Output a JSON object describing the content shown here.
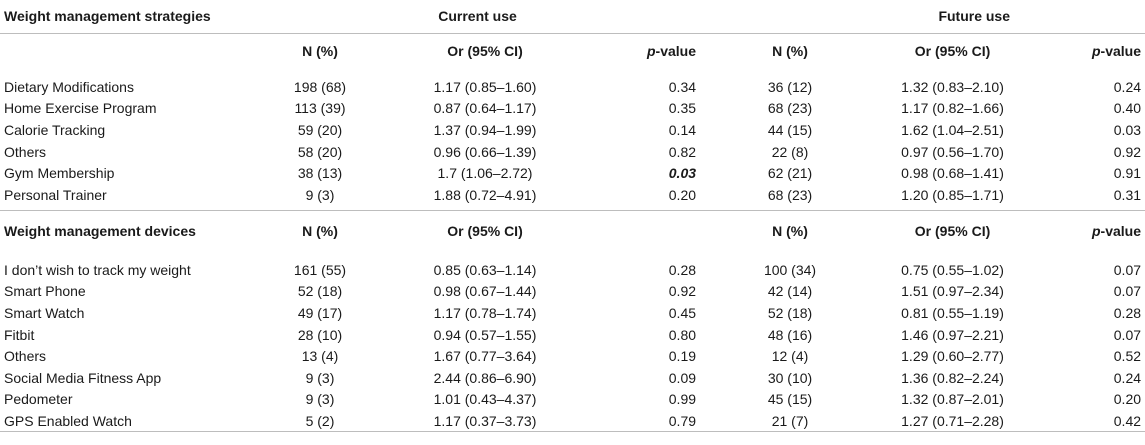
{
  "header": {
    "title": "Weight management strategies",
    "current_use": "Current use",
    "future_use": "Future use"
  },
  "subheader": {
    "n_pct": "N (%)",
    "or_ci": "Or (95% CI)",
    "p_italic": "p",
    "p_suffix": "-value"
  },
  "strategies": [
    {
      "name": "Dietary Modifications",
      "cur_n": "198 (68)",
      "cur_or": "1.17 (0.85–1.60)",
      "cur_p": "0.34",
      "fut_n": "36 (12)",
      "fut_or": "1.32 (0.83–2.10)",
      "fut_p": "0.24"
    },
    {
      "name": "Home Exercise Program",
      "cur_n": "113 (39)",
      "cur_or": "0.87 (0.64–1.17)",
      "cur_p": "0.35",
      "fut_n": "68 (23)",
      "fut_or": "1.17 (0.82–1.66)",
      "fut_p": "0.40"
    },
    {
      "name": "Calorie Tracking",
      "cur_n": "59 (20)",
      "cur_or": "1.37 (0.94–1.99)",
      "cur_p": "0.14",
      "fut_n": "44 (15)",
      "fut_or": "1.62 (1.04–2.51)",
      "fut_p": "0.03"
    },
    {
      "name": "Others",
      "cur_n": "58 (20)",
      "cur_or": "0.96 (0.66–1.39)",
      "cur_p": "0.82",
      "fut_n": "22 (8)",
      "fut_or": "0.97 (0.56–1.70)",
      "fut_p": "0.92"
    },
    {
      "name": "Gym Membership",
      "cur_n": "38 (13)",
      "cur_or": "1.7 (1.06–2.72)",
      "cur_p": "0.03",
      "fut_n": "62 (21)",
      "fut_or": "0.98 (0.68–1.41)",
      "fut_p": "0.91"
    },
    {
      "name": "Personal Trainer",
      "cur_n": "9 (3)",
      "cur_or": "1.88 (0.72–4.91)",
      "cur_p": "0.20",
      "fut_n": "68 (23)",
      "fut_or": "1.20 (0.85–1.71)",
      "fut_p": "0.31"
    }
  ],
  "devices_header": {
    "title": "Weight management devices",
    "n_pct": "N (%)",
    "or_ci": "Or (95% CI)",
    "fut_n_pct": "N (%)",
    "fut_or_ci": "Or (95% CI)",
    "p_italic": "p",
    "p_suffix": "-value"
  },
  "devices": [
    {
      "name": "I don’t wish to track my weight",
      "cur_n": "161 (55)",
      "cur_or": "0.85 (0.63–1.14)",
      "cur_p": "0.28",
      "fut_n": "100 (34)",
      "fut_or": "0.75 (0.55–1.02)",
      "fut_p": "0.07"
    },
    {
      "name": "Smart Phone",
      "cur_n": "52 (18)",
      "cur_or": "0.98 (0.67–1.44)",
      "cur_p": "0.92",
      "fut_n": "42 (14)",
      "fut_or": "1.51 (0.97–2.34)",
      "fut_p": "0.07"
    },
    {
      "name": "Smart Watch",
      "cur_n": "49 (17)",
      "cur_or": "1.17 (0.78–1.74)",
      "cur_p": "0.45",
      "fut_n": "52 (18)",
      "fut_or": "0.81 (0.55–1.19)",
      "fut_p": "0.28"
    },
    {
      "name": "Fitbit",
      "cur_n": "28 (10)",
      "cur_or": "0.94 (0.57–1.55)",
      "cur_p": "0.80",
      "fut_n": "48 (16)",
      "fut_or": "1.46 (0.97–2.21)",
      "fut_p": "0.07"
    },
    {
      "name": "Others",
      "cur_n": "13 (4)",
      "cur_or": "1.67 (0.77–3.64)",
      "cur_p": "0.19",
      "fut_n": "12 (4)",
      "fut_or": "1.29 (0.60–2.77)",
      "fut_p": "0.52"
    },
    {
      "name": "Social Media Fitness App",
      "cur_n": "9 (3)",
      "cur_or": "2.44 (0.86–6.90)",
      "cur_p": "0.09",
      "fut_n": "30 (10)",
      "fut_or": "1.36 (0.82–2.24)",
      "fut_p": "0.24"
    },
    {
      "name": "Pedometer",
      "cur_n": "9 (3)",
      "cur_or": "1.01 (0.43–4.37)",
      "cur_p": "0.99",
      "fut_n": "45 (15)",
      "fut_or": "1.32 (0.87–2.01)",
      "fut_p": "0.20"
    },
    {
      "name": "GPS Enabled Watch",
      "cur_n": "5 (2)",
      "cur_or": "1.17 (0.37–3.73)",
      "cur_p": "0.79",
      "fut_n": "21 (7)",
      "fut_or": "1.27 (0.71–2.28)",
      "fut_p": "0.42"
    }
  ]
}
